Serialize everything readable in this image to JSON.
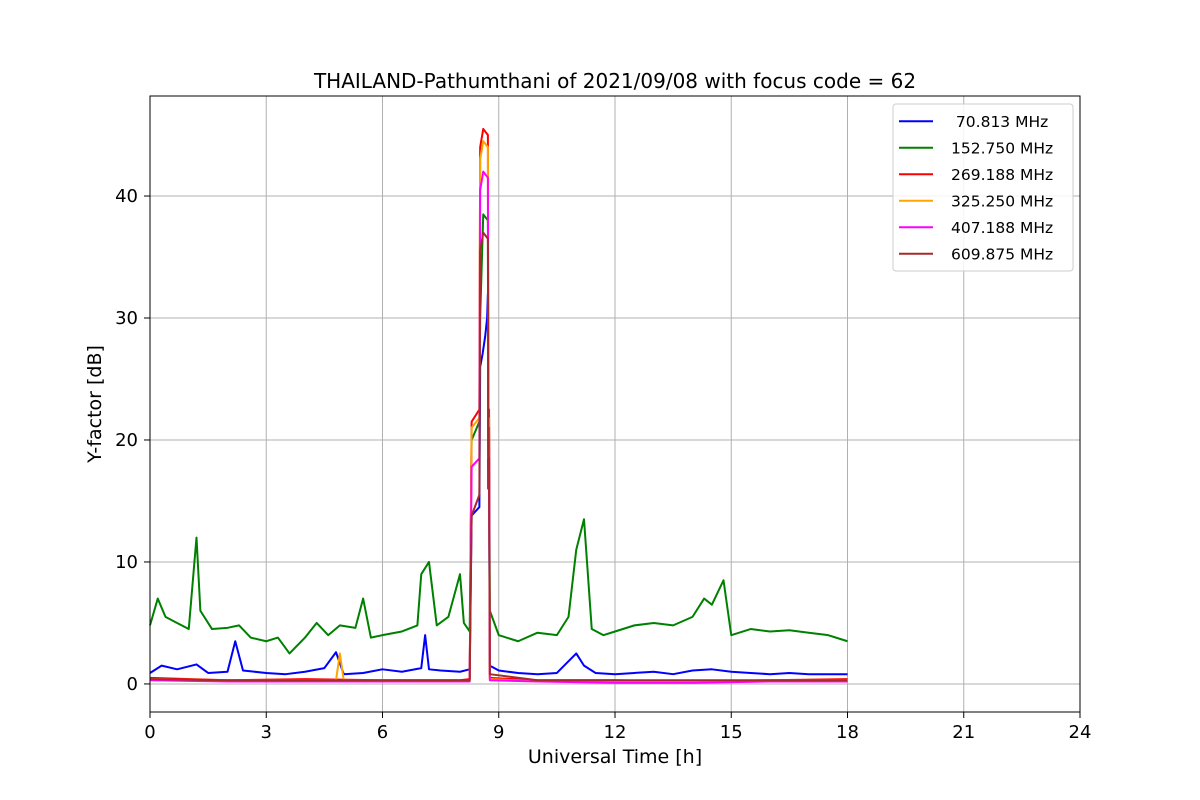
{
  "chart_data": {
    "type": "line",
    "title": "THAILAND-Pathumthani of 2021/09/08 with focus code = 62",
    "xlabel": "Universal Time [h]",
    "ylabel": "Y-factor [dB]",
    "xlim": [
      0,
      24
    ],
    "ylim": [
      -2.3,
      48.2
    ],
    "xticks": [
      0,
      3,
      6,
      9,
      12,
      15,
      18,
      21,
      24
    ],
    "yticks": [
      0,
      10,
      20,
      30,
      40
    ],
    "grid": true,
    "legend_position": "top-right",
    "series": [
      {
        "name": " 70.813 MHz",
        "color": "#0000ff",
        "points": [
          [
            0,
            0.9
          ],
          [
            0.3,
            1.5
          ],
          [
            0.7,
            1.2
          ],
          [
            1.2,
            1.6
          ],
          [
            1.5,
            0.9
          ],
          [
            2.0,
            1.0
          ],
          [
            2.2,
            3.5
          ],
          [
            2.4,
            1.1
          ],
          [
            3.0,
            0.9
          ],
          [
            3.5,
            0.8
          ],
          [
            4.0,
            1.0
          ],
          [
            4.5,
            1.3
          ],
          [
            4.8,
            2.6
          ],
          [
            5.0,
            0.8
          ],
          [
            5.5,
            0.9
          ],
          [
            6.0,
            1.2
          ],
          [
            6.5,
            1.0
          ],
          [
            7.0,
            1.3
          ],
          [
            7.1,
            4.0
          ],
          [
            7.2,
            1.2
          ],
          [
            7.5,
            1.1
          ],
          [
            8.0,
            1.0
          ],
          [
            8.25,
            1.2
          ],
          [
            8.3,
            13.8
          ],
          [
            8.5,
            14.5
          ],
          [
            8.52,
            26.0
          ],
          [
            8.58,
            27.0
          ],
          [
            8.65,
            28.5
          ],
          [
            8.7,
            30.0
          ],
          [
            8.72,
            32.0
          ],
          [
            8.73,
            16.0
          ],
          [
            8.75,
            16.0
          ],
          [
            8.77,
            1.5
          ],
          [
            9.0,
            1.1
          ],
          [
            9.5,
            0.9
          ],
          [
            10.0,
            0.8
          ],
          [
            10.5,
            0.9
          ],
          [
            11.0,
            2.5
          ],
          [
            11.2,
            1.5
          ],
          [
            11.5,
            0.9
          ],
          [
            12.0,
            0.8
          ],
          [
            12.5,
            0.9
          ],
          [
            13.0,
            1.0
          ],
          [
            13.5,
            0.8
          ],
          [
            14.0,
            1.1
          ],
          [
            14.5,
            1.2
          ],
          [
            15.0,
            1.0
          ],
          [
            15.5,
            0.9
          ],
          [
            16.0,
            0.8
          ],
          [
            16.5,
            0.9
          ],
          [
            17.0,
            0.8
          ],
          [
            17.5,
            0.8
          ],
          [
            18.0,
            0.8
          ]
        ]
      },
      {
        "name": "152.750 MHz",
        "color": "#008000",
        "points": [
          [
            0,
            4.8
          ],
          [
            0.2,
            7.0
          ],
          [
            0.4,
            5.5
          ],
          [
            0.7,
            5.0
          ],
          [
            1.0,
            4.5
          ],
          [
            1.2,
            12.0
          ],
          [
            1.3,
            6.0
          ],
          [
            1.6,
            4.5
          ],
          [
            2.0,
            4.6
          ],
          [
            2.3,
            4.8
          ],
          [
            2.6,
            3.8
          ],
          [
            3.0,
            3.5
          ],
          [
            3.3,
            3.8
          ],
          [
            3.6,
            2.5
          ],
          [
            4.0,
            3.8
          ],
          [
            4.3,
            5.0
          ],
          [
            4.6,
            4.0
          ],
          [
            4.9,
            4.8
          ],
          [
            5.3,
            4.6
          ],
          [
            5.5,
            7.0
          ],
          [
            5.7,
            3.8
          ],
          [
            6.0,
            4.0
          ],
          [
            6.5,
            4.3
          ],
          [
            6.9,
            4.8
          ],
          [
            7.0,
            9.0
          ],
          [
            7.2,
            10.0
          ],
          [
            7.4,
            4.8
          ],
          [
            7.7,
            5.5
          ],
          [
            8.0,
            9.0
          ],
          [
            8.1,
            5.0
          ],
          [
            8.25,
            4.3
          ],
          [
            8.3,
            20.0
          ],
          [
            8.5,
            21.5
          ],
          [
            8.52,
            30.0
          ],
          [
            8.6,
            38.5
          ],
          [
            8.72,
            38.0
          ],
          [
            8.73,
            22.0
          ],
          [
            8.75,
            22.0
          ],
          [
            8.77,
            6.0
          ],
          [
            9.0,
            4.0
          ],
          [
            9.5,
            3.5
          ],
          [
            10.0,
            4.2
          ],
          [
            10.5,
            4.0
          ],
          [
            10.8,
            5.5
          ],
          [
            11.0,
            11.0
          ],
          [
            11.2,
            13.5
          ],
          [
            11.4,
            4.5
          ],
          [
            11.7,
            4.0
          ],
          [
            12.0,
            4.3
          ],
          [
            12.5,
            4.8
          ],
          [
            13.0,
            5.0
          ],
          [
            13.5,
            4.8
          ],
          [
            14.0,
            5.5
          ],
          [
            14.3,
            7.0
          ],
          [
            14.5,
            6.5
          ],
          [
            14.8,
            8.5
          ],
          [
            15.0,
            4.0
          ],
          [
            15.5,
            4.5
          ],
          [
            16.0,
            4.3
          ],
          [
            16.5,
            4.4
          ],
          [
            17.0,
            4.2
          ],
          [
            17.5,
            4.0
          ],
          [
            18.0,
            3.5
          ]
        ]
      },
      {
        "name": "269.188 MHz",
        "color": "#ff0000",
        "points": [
          [
            0,
            0.5
          ],
          [
            2.0,
            0.3
          ],
          [
            4.0,
            0.4
          ],
          [
            6.0,
            0.3
          ],
          [
            8.0,
            0.3
          ],
          [
            8.25,
            0.4
          ],
          [
            8.3,
            21.5
          ],
          [
            8.5,
            22.5
          ],
          [
            8.52,
            44.0
          ],
          [
            8.6,
            45.5
          ],
          [
            8.72,
            45.0
          ],
          [
            8.73,
            22.5
          ],
          [
            8.75,
            22.5
          ],
          [
            8.77,
            0.5
          ],
          [
            10.0,
            0.3
          ],
          [
            12.0,
            0.3
          ],
          [
            14.0,
            0.2
          ],
          [
            16.0,
            0.3
          ],
          [
            18.0,
            0.4
          ]
        ]
      },
      {
        "name": "325.250 MHz",
        "color": "#ffa500",
        "points": [
          [
            0,
            0.4
          ],
          [
            2.0,
            0.3
          ],
          [
            4.8,
            0.3
          ],
          [
            4.9,
            2.5
          ],
          [
            5.0,
            0.3
          ],
          [
            6.0,
            0.3
          ],
          [
            8.0,
            0.2
          ],
          [
            8.25,
            0.3
          ],
          [
            8.3,
            21.0
          ],
          [
            8.5,
            21.8
          ],
          [
            8.52,
            43.0
          ],
          [
            8.6,
            44.5
          ],
          [
            8.72,
            44.0
          ],
          [
            8.73,
            21.8
          ],
          [
            8.75,
            21.8
          ],
          [
            8.77,
            0.4
          ],
          [
            10.0,
            0.2
          ],
          [
            12.0,
            0.2
          ],
          [
            14.0,
            0.2
          ],
          [
            16.0,
            0.3
          ],
          [
            18.0,
            0.3
          ]
        ]
      },
      {
        "name": "407.188 MHz",
        "color": "#ff00ff",
        "points": [
          [
            0,
            0.3
          ],
          [
            2.0,
            0.2
          ],
          [
            4.0,
            0.2
          ],
          [
            6.0,
            0.2
          ],
          [
            8.0,
            0.2
          ],
          [
            8.25,
            0.2
          ],
          [
            8.3,
            17.8
          ],
          [
            8.5,
            18.5
          ],
          [
            8.52,
            40.5
          ],
          [
            8.6,
            42.0
          ],
          [
            8.72,
            41.5
          ],
          [
            8.73,
            21.0
          ],
          [
            8.75,
            21.0
          ],
          [
            8.77,
            0.3
          ],
          [
            10.0,
            0.2
          ],
          [
            12.0,
            0.1
          ],
          [
            14.0,
            0.1
          ],
          [
            16.0,
            0.2
          ],
          [
            18.0,
            0.2
          ]
        ]
      },
      {
        "name": "609.875 MHz",
        "color": "#a52a2a",
        "points": [
          [
            0,
            0.4
          ],
          [
            2.0,
            0.3
          ],
          [
            4.0,
            0.3
          ],
          [
            6.0,
            0.3
          ],
          [
            8.0,
            0.3
          ],
          [
            8.25,
            0.3
          ],
          [
            8.3,
            13.8
          ],
          [
            8.5,
            15.5
          ],
          [
            8.52,
            35.5
          ],
          [
            8.6,
            37.0
          ],
          [
            8.72,
            36.5
          ],
          [
            8.73,
            18.5
          ],
          [
            8.75,
            18.5
          ],
          [
            8.77,
            0.8
          ],
          [
            10.0,
            0.3
          ],
          [
            12.0,
            0.3
          ],
          [
            14.0,
            0.3
          ],
          [
            16.0,
            0.3
          ],
          [
            18.0,
            0.3
          ]
        ]
      }
    ]
  }
}
